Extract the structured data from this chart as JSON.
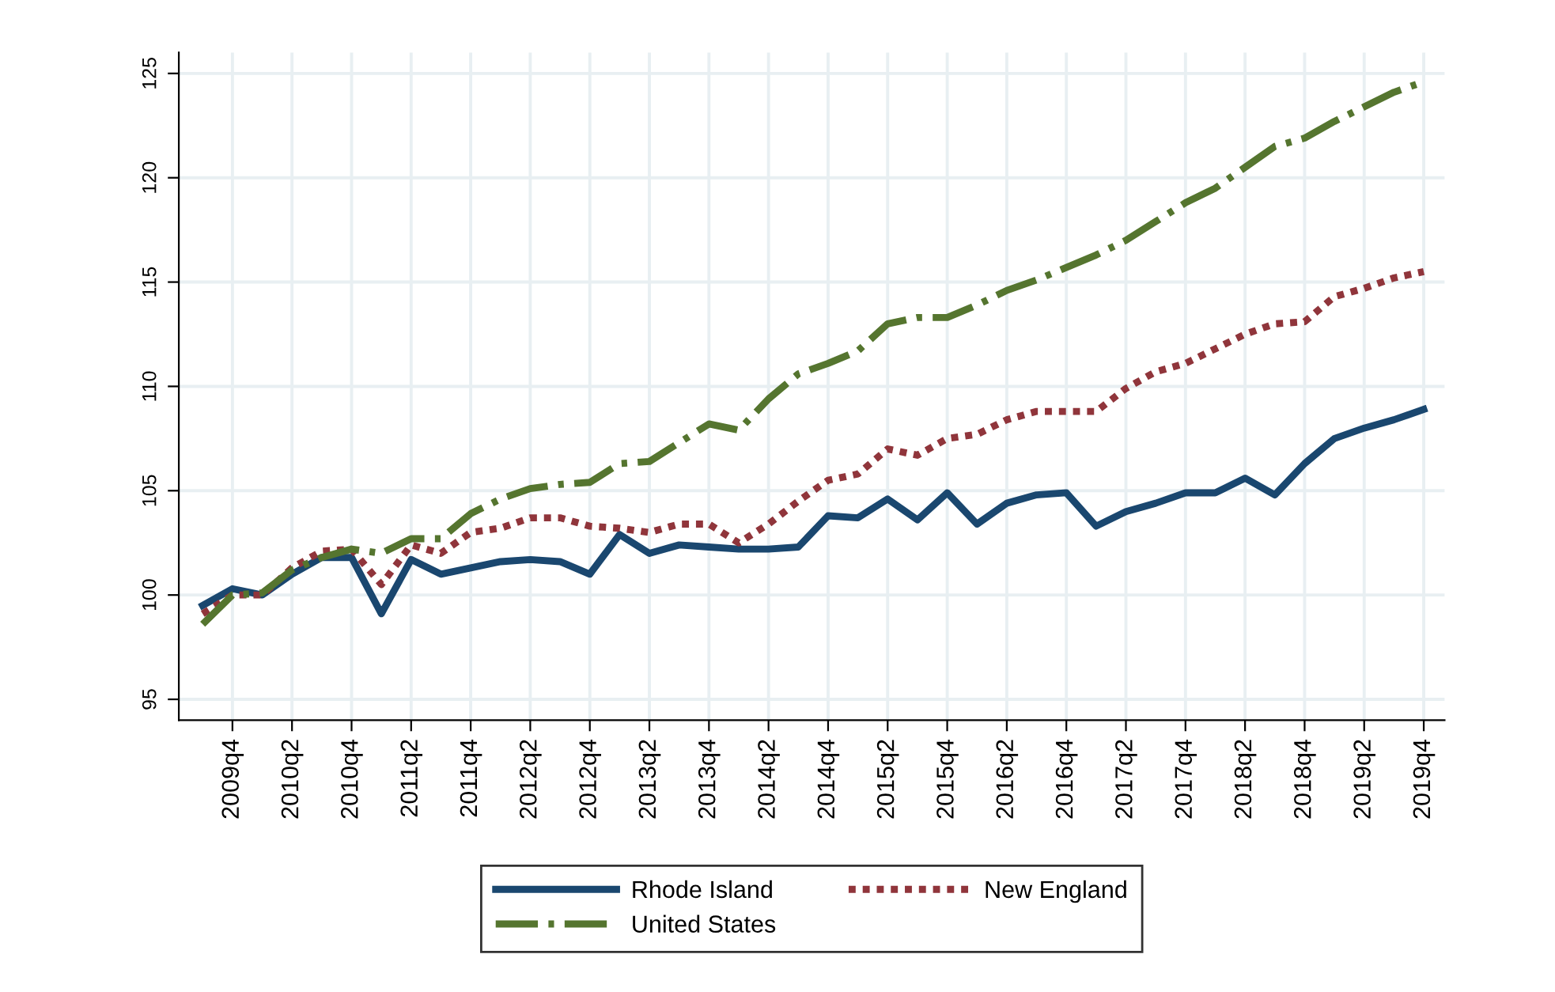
{
  "chart_data": {
    "type": "line",
    "categories": [
      null,
      "2009q4",
      null,
      "2010q2",
      null,
      "2010q4",
      null,
      "2011q2",
      null,
      "2011q4",
      null,
      "2012q2",
      null,
      "2012q4",
      null,
      "2013q2",
      null,
      "2013q4",
      null,
      "2014q2",
      null,
      "2014q4",
      null,
      "2015q2",
      null,
      "2015q4",
      null,
      "2016q2",
      null,
      "2016q4",
      null,
      "2017q2",
      null,
      "2017q4",
      null,
      "2018q2",
      null,
      "2018q4",
      null,
      "2019q2",
      null,
      "2019q4"
    ],
    "series": [
      {
        "name": "Rhode Island",
        "color": "#1a476f",
        "line_style": "solid",
        "values": [
          99.5,
          100.3,
          100.0,
          101.0,
          101.8,
          101.8,
          99.1,
          101.7,
          101.0,
          101.3,
          101.6,
          101.7,
          101.6,
          101.0,
          102.9,
          102.0,
          102.4,
          102.3,
          102.2,
          102.2,
          102.3,
          103.8,
          103.7,
          104.6,
          103.6,
          104.9,
          103.4,
          104.4,
          104.8,
          104.9,
          103.3,
          104.0,
          104.4,
          104.9,
          104.9,
          105.6,
          104.8,
          106.3,
          107.5,
          108.0,
          108.4,
          108.9
        ]
      },
      {
        "name": "New England",
        "color": "#90353b",
        "line_style": "dotted",
        "values": [
          99.1,
          100.0,
          100.0,
          101.3,
          102.1,
          102.2,
          100.5,
          102.4,
          102.0,
          103.0,
          103.2,
          103.7,
          103.7,
          103.3,
          103.2,
          103.0,
          103.4,
          103.4,
          102.5,
          103.4,
          104.5,
          105.5,
          105.8,
          107.0,
          106.7,
          107.5,
          107.7,
          108.4,
          108.8,
          108.8,
          108.8,
          109.9,
          110.7,
          111.1,
          111.8,
          112.5,
          113.0,
          113.1,
          114.3,
          114.7,
          115.2,
          115.5
        ]
      },
      {
        "name": "United States",
        "color": "#55752f",
        "line_style": "dashed",
        "values": [
          98.6,
          100.0,
          100.1,
          101.2,
          101.8,
          102.2,
          102.0,
          102.7,
          102.7,
          103.9,
          104.6,
          105.1,
          105.3,
          105.4,
          106.3,
          106.4,
          107.3,
          108.2,
          107.9,
          109.4,
          110.6,
          111.1,
          111.7,
          113.0,
          113.3,
          113.3,
          113.9,
          114.6,
          115.1,
          115.7,
          116.3,
          117.0,
          117.9,
          118.8,
          119.5,
          120.5,
          121.5,
          121.9,
          122.7,
          123.4,
          124.1,
          124.6
        ]
      }
    ],
    "ylim": [
      94,
      126
    ],
    "yticks": [
      95,
      100,
      105,
      110,
      115,
      120,
      125
    ],
    "grid": true,
    "legend": "bottom"
  }
}
